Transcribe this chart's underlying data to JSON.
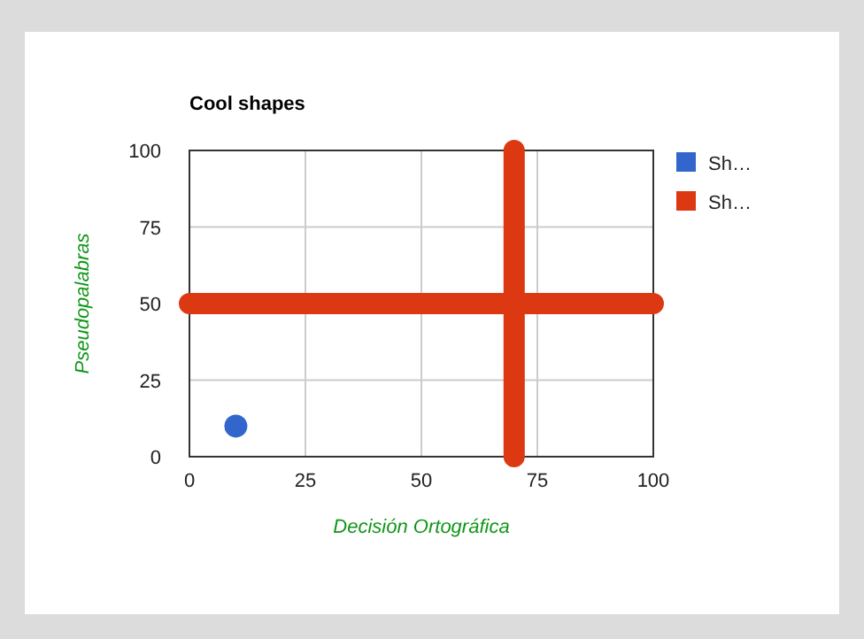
{
  "chart_data": {
    "type": "scatter",
    "title": "Cool shapes",
    "xlabel": "Decisión Ortográfica",
    "ylabel": "Pseudopalabras",
    "xlim": [
      0,
      100
    ],
    "ylim": [
      0,
      100
    ],
    "xticks": [
      0,
      25,
      50,
      75,
      100
    ],
    "yticks": [
      0,
      25,
      50,
      75,
      100
    ],
    "grid": true,
    "legend": "top right",
    "series": [
      {
        "name": "Sh…",
        "color": "#3366cc",
        "x": [
          10
        ],
        "values": [
          10
        ],
        "marker": "circle"
      },
      {
        "name": "Sh…",
        "color": "#dc3912",
        "type": "line",
        "x": [
          0,
          100,
          85,
          70,
          70
        ],
        "values": [
          50,
          50,
          null,
          0,
          100
        ],
        "marker": "none"
      }
    ]
  }
}
